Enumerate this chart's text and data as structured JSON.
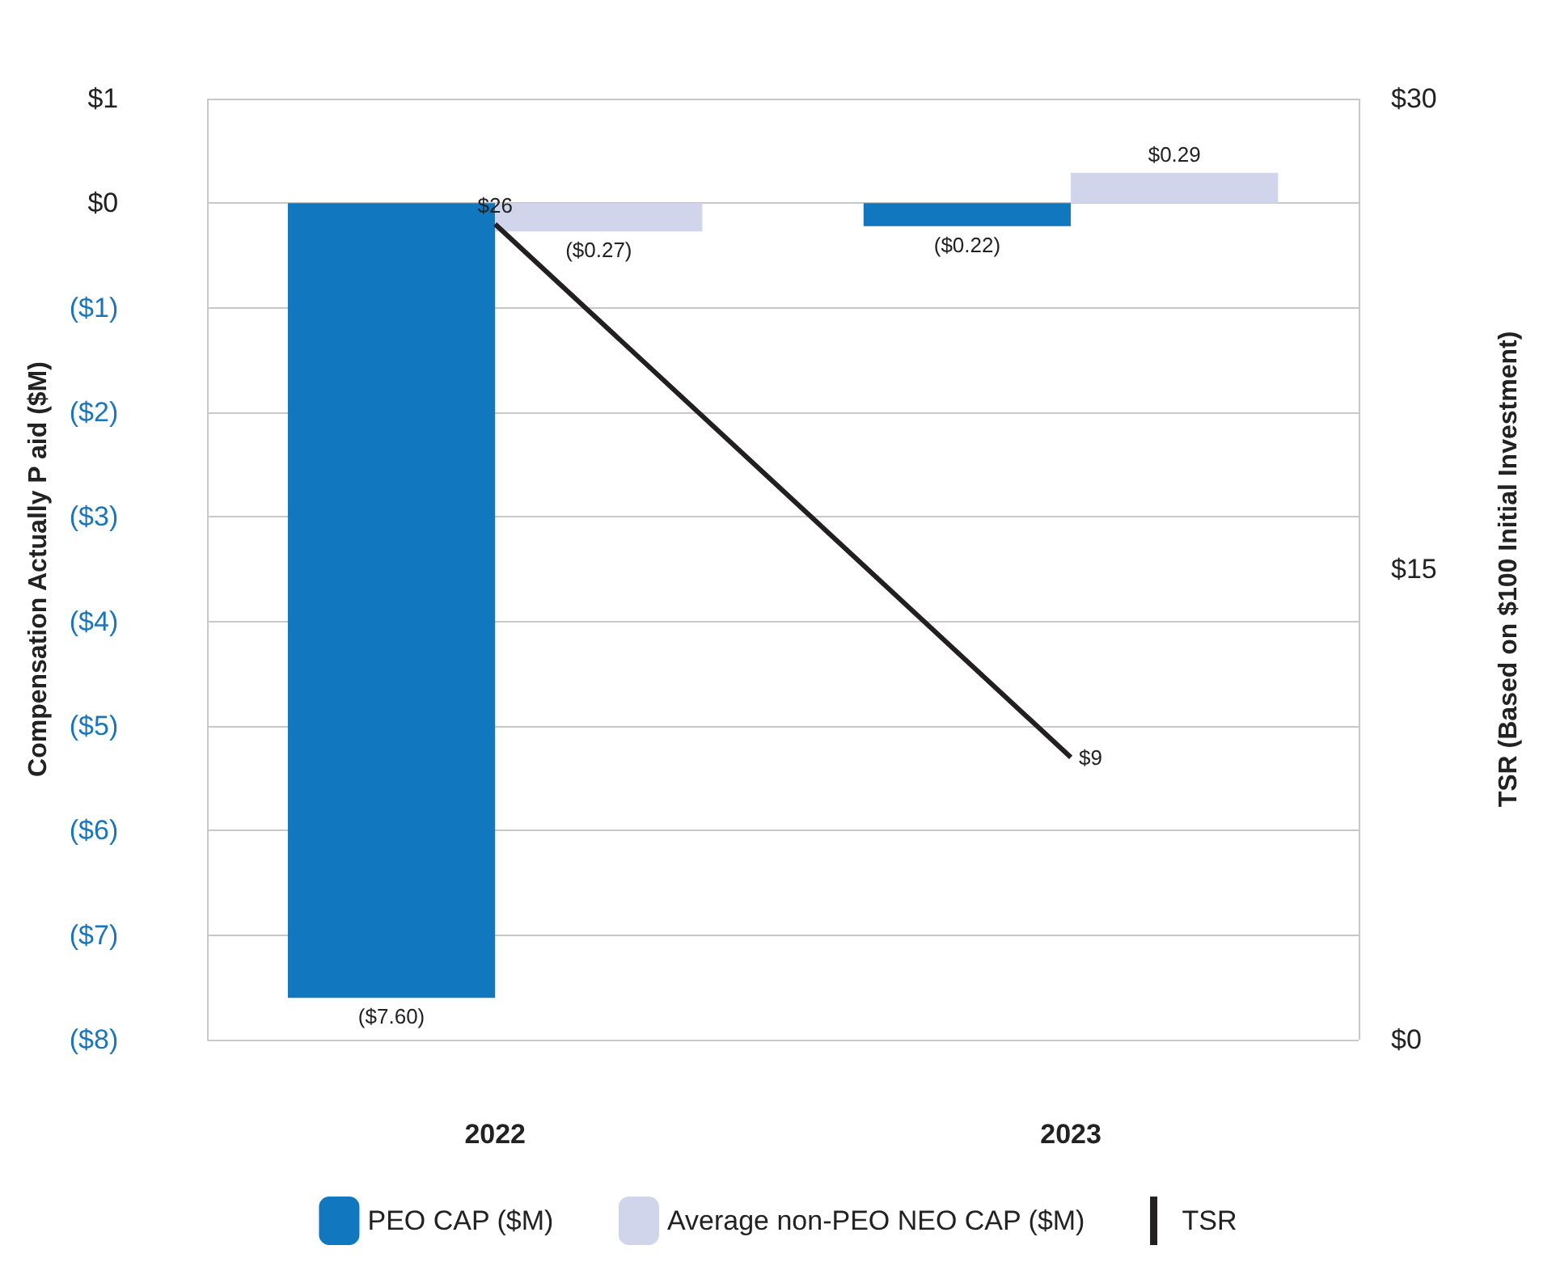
{
  "chart_data": {
    "type": "bar",
    "categories": [
      "2022",
      "2023"
    ],
    "series": [
      {
        "name": "PEO CAP ($M)",
        "color": "#1177bf",
        "values": [
          -7.6,
          -0.22
        ],
        "value_labels": [
          "($7.60)",
          "($0.22)"
        ]
      },
      {
        "name": "Average non-PEO NEO CAP ($M)",
        "color": "#d0d5ec",
        "values": [
          -0.27,
          0.29
        ],
        "value_labels": [
          "($0.27)",
          "$0.29"
        ]
      },
      {
        "name": "TSR",
        "type": "line",
        "axis": "y2",
        "color": "#231f20",
        "values": [
          26,
          9
        ],
        "value_labels": [
          "$26",
          "$9"
        ]
      }
    ],
    "ylabel": "Compensation Actually P aid ($M)",
    "y2label": "TSR (Based on $100 Initial Investment)",
    "ylim": [
      -8,
      1
    ],
    "yticks": [
      {
        "value": -8,
        "label": "($8)"
      },
      {
        "value": -7,
        "label": "($7)"
      },
      {
        "value": -6,
        "label": "($6)"
      },
      {
        "value": -5,
        "label": "($5)"
      },
      {
        "value": -4,
        "label": "($4)"
      },
      {
        "value": -3,
        "label": "($3)"
      },
      {
        "value": -2,
        "label": "($2)"
      },
      {
        "value": -1,
        "label": "($1)"
      },
      {
        "value": 0,
        "label": "$0"
      },
      {
        "value": 1,
        "label": "$1"
      }
    ],
    "y2lim": [
      0,
      30
    ],
    "y2ticks": [
      {
        "value": 0,
        "label": "$0"
      },
      {
        "value": 15,
        "label": "$15"
      },
      {
        "value": 30,
        "label": "$30"
      }
    ],
    "grid": true,
    "legend": "bottom",
    "marker": "none"
  }
}
